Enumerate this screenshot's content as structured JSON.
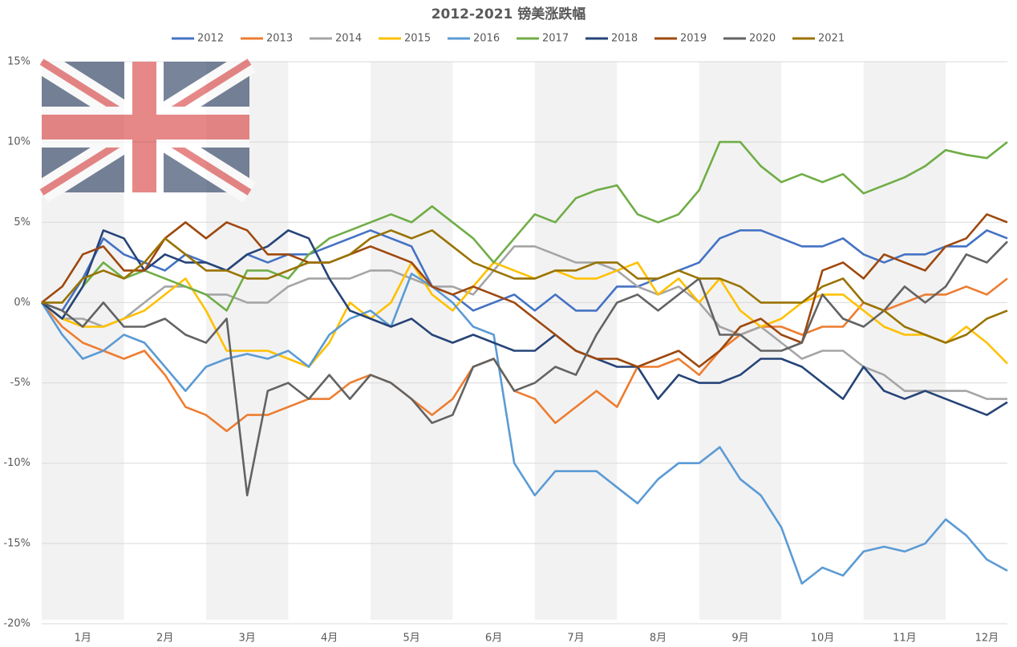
{
  "chart_data": {
    "type": "line",
    "title": "2012-2021 镑美涨跌幅",
    "categories": [
      null,
      null,
      "1月",
      null,
      null,
      null,
      "2月",
      null,
      null,
      null,
      "3月",
      null,
      null,
      null,
      "4月",
      null,
      null,
      null,
      "5月",
      null,
      null,
      null,
      "6月",
      null,
      null,
      null,
      "7月",
      null,
      null,
      null,
      "8月",
      null,
      null,
      null,
      "9月",
      null,
      null,
      null,
      "10月",
      null,
      null,
      null,
      "11月",
      null,
      null,
      null,
      "12月",
      null
    ],
    "ylim": [
      -20,
      15
    ],
    "yticks": [
      {
        "value": -20,
        "label": "-20%"
      },
      {
        "value": -15,
        "label": "-15%"
      },
      {
        "value": -10,
        "label": "-10%"
      },
      {
        "value": -5,
        "label": "-5%"
      },
      {
        "value": 0,
        "label": "0%"
      },
      {
        "value": 5,
        "label": "5%"
      },
      {
        "value": 10,
        "label": "10%"
      },
      {
        "value": 15,
        "label": "15%"
      }
    ],
    "grid": true,
    "legend": "top",
    "series": [
      {
        "name": "2012",
        "color": "#4472c4",
        "values": [
          0,
          -0.5,
          1.5,
          4,
          3,
          2.5,
          2,
          3,
          2.5,
          2,
          3,
          2.5,
          3,
          3,
          3.5,
          4,
          4.5,
          4,
          3.5,
          1,
          0.5,
          -0.5,
          0,
          0.5,
          -0.5,
          0.5,
          -0.5,
          -0.5,
          1,
          1,
          1.5,
          2,
          2.5,
          4,
          4.5,
          4.5,
          4,
          3.5,
          3.5,
          4,
          3,
          2.5,
          3,
          3,
          3.5,
          3.5,
          4.5,
          4
        ]
      },
      {
        "name": "2013",
        "color": "#ed7d31",
        "values": [
          0,
          -1.5,
          -2.5,
          -3,
          -3.5,
          -3,
          -4.5,
          -6.5,
          -7,
          -8,
          -7,
          -7,
          -6.5,
          -6,
          -6,
          -5,
          -4.5,
          -5,
          -6,
          -7,
          -6,
          -4,
          -3.5,
          -5.5,
          -6,
          -7.5,
          -6.5,
          -5.5,
          -6.5,
          -4,
          -4,
          -3.5,
          -4.5,
          -3,
          -2,
          -1.5,
          -1.5,
          -2,
          -1.5,
          -1.5,
          0,
          -0.5,
          0,
          0.5,
          0.5,
          1,
          0.5,
          1.5
        ]
      },
      {
        "name": "2014",
        "color": "#a5a5a5",
        "values": [
          0,
          -1,
          -1,
          -1.5,
          -1,
          0,
          1,
          1,
          0.5,
          0.5,
          0,
          0,
          1,
          1.5,
          1.5,
          1.5,
          2,
          2,
          1.5,
          1,
          1,
          0.5,
          2,
          3.5,
          3.5,
          3,
          2.5,
          2.5,
          2,
          1,
          0.5,
          1,
          0,
          -1.5,
          -2,
          -1.5,
          -2.5,
          -3.5,
          -3,
          -3,
          -4,
          -4.5,
          -5.5,
          -5.5,
          -5.5,
          -5.5,
          -6,
          -6
        ]
      },
      {
        "name": "2015",
        "color": "#ffc000",
        "values": [
          0,
          -1,
          -1.5,
          -1.5,
          -1,
          -0.5,
          0.5,
          1.5,
          -0.5,
          -3,
          -3,
          -3,
          -3.5,
          -4,
          -2.5,
          0,
          -1,
          0,
          2.5,
          0.5,
          -0.5,
          1,
          2.5,
          2,
          1.5,
          2,
          1.5,
          1.5,
          2,
          2.5,
          0.5,
          1.5,
          0,
          1.5,
          -0.5,
          -1.5,
          -1,
          0,
          0.5,
          0.5,
          -0.5,
          -1.5,
          -2,
          -2,
          -2.5,
          -1.5,
          -2.5,
          -3.8
        ]
      },
      {
        "name": "2016",
        "color": "#5b9bd5",
        "values": [
          0,
          -2,
          -3.5,
          -3,
          -2,
          -2.5,
          -4,
          -5.5,
          -4,
          -3.5,
          -3.2,
          -3.5,
          -3,
          -4,
          -2,
          -1,
          -0.5,
          -1.5,
          1.8,
          1,
          0,
          -1.5,
          -2,
          -10,
          -12,
          -10.5,
          -10.5,
          -10.5,
          -11.5,
          -12.5,
          -11,
          -10,
          -10,
          -9,
          -11,
          -12,
          -14,
          -17.5,
          -16.5,
          -17,
          -15.5,
          -15.2,
          -15.5,
          -15,
          -13.5,
          -14.5,
          -16,
          -16.7
        ]
      },
      {
        "name": "2017",
        "color": "#70ad47",
        "values": [
          0,
          -1,
          1,
          2.5,
          1.5,
          2,
          1.5,
          1,
          0.5,
          -0.5,
          2,
          2,
          1.5,
          3,
          4,
          4.5,
          5,
          5.5,
          5,
          6,
          5,
          4,
          2.5,
          4,
          5.5,
          5,
          6.5,
          7,
          7.3,
          5.5,
          5,
          5.5,
          7,
          10,
          10,
          8.5,
          7.5,
          8,
          7.5,
          8,
          6.8,
          7.3,
          7.8,
          8.5,
          9.5,
          9.2,
          9,
          10
        ]
      },
      {
        "name": "2018",
        "color": "#264478",
        "values": [
          0,
          -1,
          1,
          4.5,
          4,
          2,
          3,
          2.5,
          2.5,
          2,
          3,
          3.5,
          4.5,
          4,
          1.5,
          -0.5,
          -1,
          -1.5,
          -1,
          -2,
          -2.5,
          -2,
          -2.5,
          -3,
          -3,
          -2,
          -3,
          -3.5,
          -4,
          -4,
          -6,
          -4.5,
          -5,
          -5,
          -4.5,
          -3.5,
          -3.5,
          -4,
          -5,
          -6,
          -4,
          -5.5,
          -6,
          -5.5,
          -6,
          -6.5,
          -7,
          -6.2
        ]
      },
      {
        "name": "2019",
        "color": "#9e480e",
        "values": [
          0,
          1,
          3,
          3.5,
          2,
          2,
          4,
          5,
          4,
          5,
          4.5,
          3,
          3,
          2.5,
          2.5,
          3,
          3.5,
          3,
          2.5,
          1,
          0.5,
          1,
          0.5,
          0,
          -1,
          -2,
          -3,
          -3.5,
          -3.5,
          -4,
          -3.5,
          -3,
          -4,
          -3,
          -1.5,
          -1,
          -2,
          -2.5,
          2,
          2.5,
          1.5,
          3,
          2.5,
          2,
          3.5,
          4,
          5.5,
          5
        ]
      },
      {
        "name": "2020",
        "color": "#636363",
        "values": [
          0,
          -0.5,
          -1.5,
          0,
          -1.5,
          -1.5,
          -1,
          -2,
          -2.5,
          -1,
          -12,
          -5.5,
          -5,
          -6,
          -4.5,
          -6,
          -4.5,
          -5,
          -6,
          -7.5,
          -7,
          -4,
          -3.5,
          -5.5,
          -5,
          -4,
          -4.5,
          -2,
          0,
          0.5,
          -0.5,
          0.5,
          1.5,
          -2,
          -2,
          -3,
          -3,
          -2.5,
          0.5,
          -1,
          -1.5,
          -0.5,
          1,
          0,
          1,
          3,
          2.5,
          3.8
        ]
      },
      {
        "name": "2021",
        "color": "#997300",
        "values": [
          0,
          0,
          1.5,
          2,
          1.5,
          2.5,
          4,
          3,
          2,
          2,
          1.5,
          1.5,
          2,
          2.5,
          2.5,
          3,
          4,
          4.5,
          4,
          4.5,
          3.5,
          2.5,
          2,
          1.5,
          1.5,
          2,
          2,
          2.5,
          2.5,
          1.5,
          1.5,
          2,
          1.5,
          1.5,
          1,
          0,
          0,
          0,
          1,
          1.5,
          0,
          -0.5,
          -1.5,
          -2,
          -2.5,
          -2,
          -1,
          -0.5
        ]
      }
    ]
  }
}
